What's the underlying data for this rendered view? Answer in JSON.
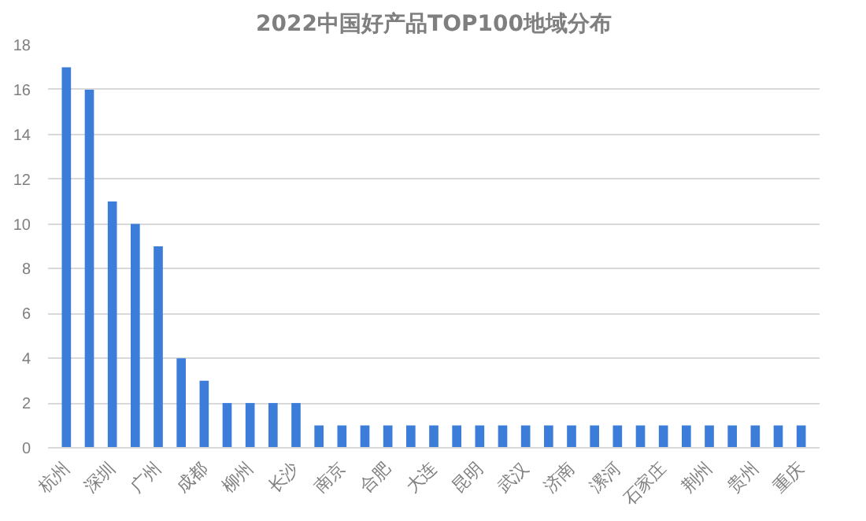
{
  "chart_data": {
    "type": "bar",
    "title": "2022中国好产品TOP100地域分布",
    "categories": [
      "杭州",
      null,
      "深圳",
      null,
      "广州",
      null,
      "成都",
      null,
      "柳州",
      null,
      "长沙",
      null,
      "南京",
      null,
      "合肥",
      null,
      "大连",
      null,
      "昆明",
      null,
      "武汉",
      null,
      "济南",
      null,
      "漯河",
      null,
      "石家庄",
      null,
      "荆州",
      null,
      "贵州",
      null,
      "重庆"
    ],
    "values": [
      17,
      16,
      11,
      10,
      9,
      4,
      3,
      2,
      2,
      2,
      2,
      1,
      1,
      1,
      1,
      1,
      1,
      1,
      1,
      1,
      1,
      1,
      1,
      1,
      1,
      1,
      1,
      1,
      1,
      1,
      1,
      1,
      1
    ],
    "color": "#3c7dd9",
    "ylim": [
      0,
      18
    ],
    "yticks": [
      0,
      2,
      4,
      6,
      8,
      10,
      12,
      14,
      16,
      18
    ],
    "grid": "y"
  }
}
